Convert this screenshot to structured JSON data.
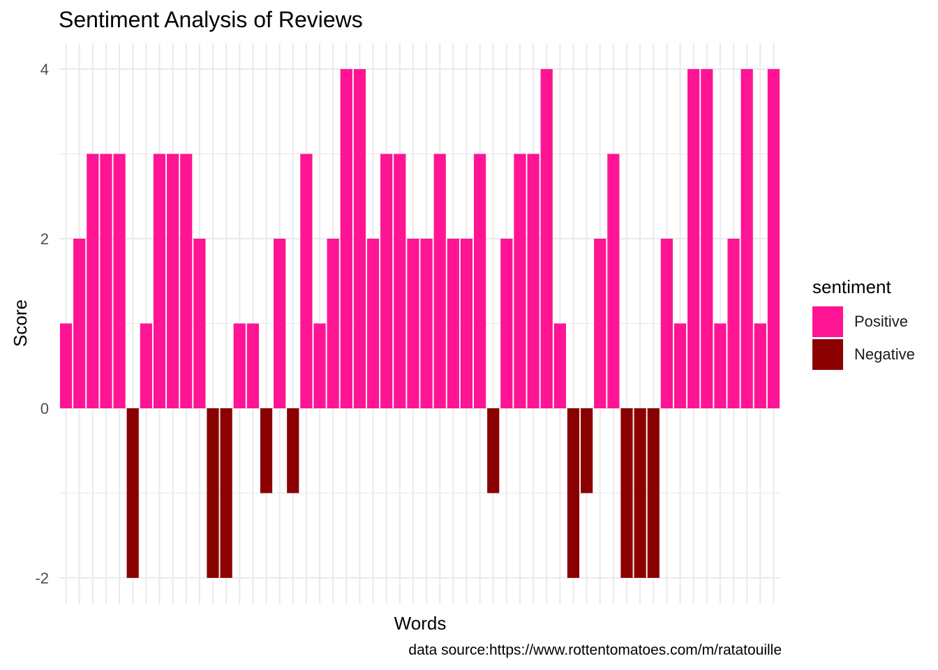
{
  "colors": {
    "Positive": "#FF1493",
    "Negative": "#8B0000",
    "grid": "#EBEBEB",
    "tick_text": "#4D4D4D",
    "text": "#000000"
  },
  "chart_data": {
    "type": "bar",
    "title": "Sentiment Analysis of Reviews",
    "xlabel": "Words",
    "ylabel": "Score",
    "caption": "data source:https://www.rottentomatoes.com/m/ratatouille",
    "ylim": [
      -2.3,
      4.3
    ],
    "y_ticks": [
      -2,
      0,
      2,
      4
    ],
    "x_tick_labels_visible": false,
    "grid": true,
    "legend_position": "right",
    "legend_title": "sentiment",
    "legend_entries": [
      "Positive",
      "Negative"
    ],
    "values": [
      1,
      2,
      3,
      3,
      3,
      -2,
      1,
      3,
      3,
      3,
      2,
      -2,
      -2,
      1,
      1,
      -1,
      2,
      -1,
      3,
      1,
      2,
      4,
      4,
      2,
      3,
      3,
      2,
      2,
      3,
      2,
      2,
      3,
      -1,
      2,
      3,
      3,
      4,
      1,
      -2,
      -1,
      2,
      3,
      -2,
      -2,
      -2,
      2,
      1,
      4,
      4,
      1,
      2,
      4,
      1,
      4
    ]
  }
}
